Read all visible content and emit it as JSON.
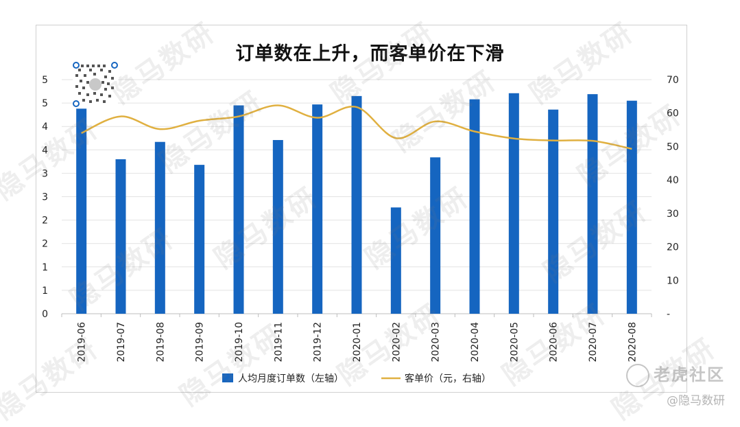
{
  "chart_data": {
    "title": "订单数在上升，而客单价在下滑",
    "type": "bar+line",
    "categories": [
      "2019-06",
      "2019-07",
      "2019-08",
      "2019-09",
      "2019-10",
      "2019-11",
      "2019-12",
      "2020-01",
      "2020-02",
      "2020-03",
      "2020-04",
      "2020-05",
      "2020-06",
      "2020-07",
      "2020-08"
    ],
    "left_axis": {
      "tick_labels": [
        "0",
        "1",
        "1",
        "2",
        "2",
        "3",
        "3",
        "4",
        "4",
        "5",
        "5"
      ],
      "ylim": [
        0,
        5
      ]
    },
    "right_axis": {
      "tick_labels": [
        "-",
        "10",
        "20",
        "30",
        "40",
        "50",
        "60",
        "70"
      ],
      "ylim": [
        0,
        70
      ]
    },
    "series": [
      {
        "name": "人均月度订单数（左轴）",
        "type": "bar",
        "axis": "left",
        "color": "#1565c0",
        "values": [
          4.38,
          3.3,
          3.67,
          3.18,
          4.45,
          3.71,
          4.47,
          4.65,
          2.27,
          3.34,
          4.58,
          4.71,
          4.36,
          4.69,
          4.55
        ]
      },
      {
        "name": "客单价（元，右轴）",
        "type": "line",
        "axis": "right",
        "color": "#e0b040",
        "values": [
          54,
          59,
          55.2,
          57.7,
          59,
          62.3,
          58.6,
          61.8,
          52.5,
          57.5,
          54.5,
          52.4,
          51.8,
          51.7,
          49.3
        ]
      }
    ],
    "legend_position": "bottom",
    "grid": true
  },
  "watermarks": {
    "text": "隐马数研",
    "corner_logo": "老虎社区",
    "corner_handle": "@隐马数研"
  }
}
